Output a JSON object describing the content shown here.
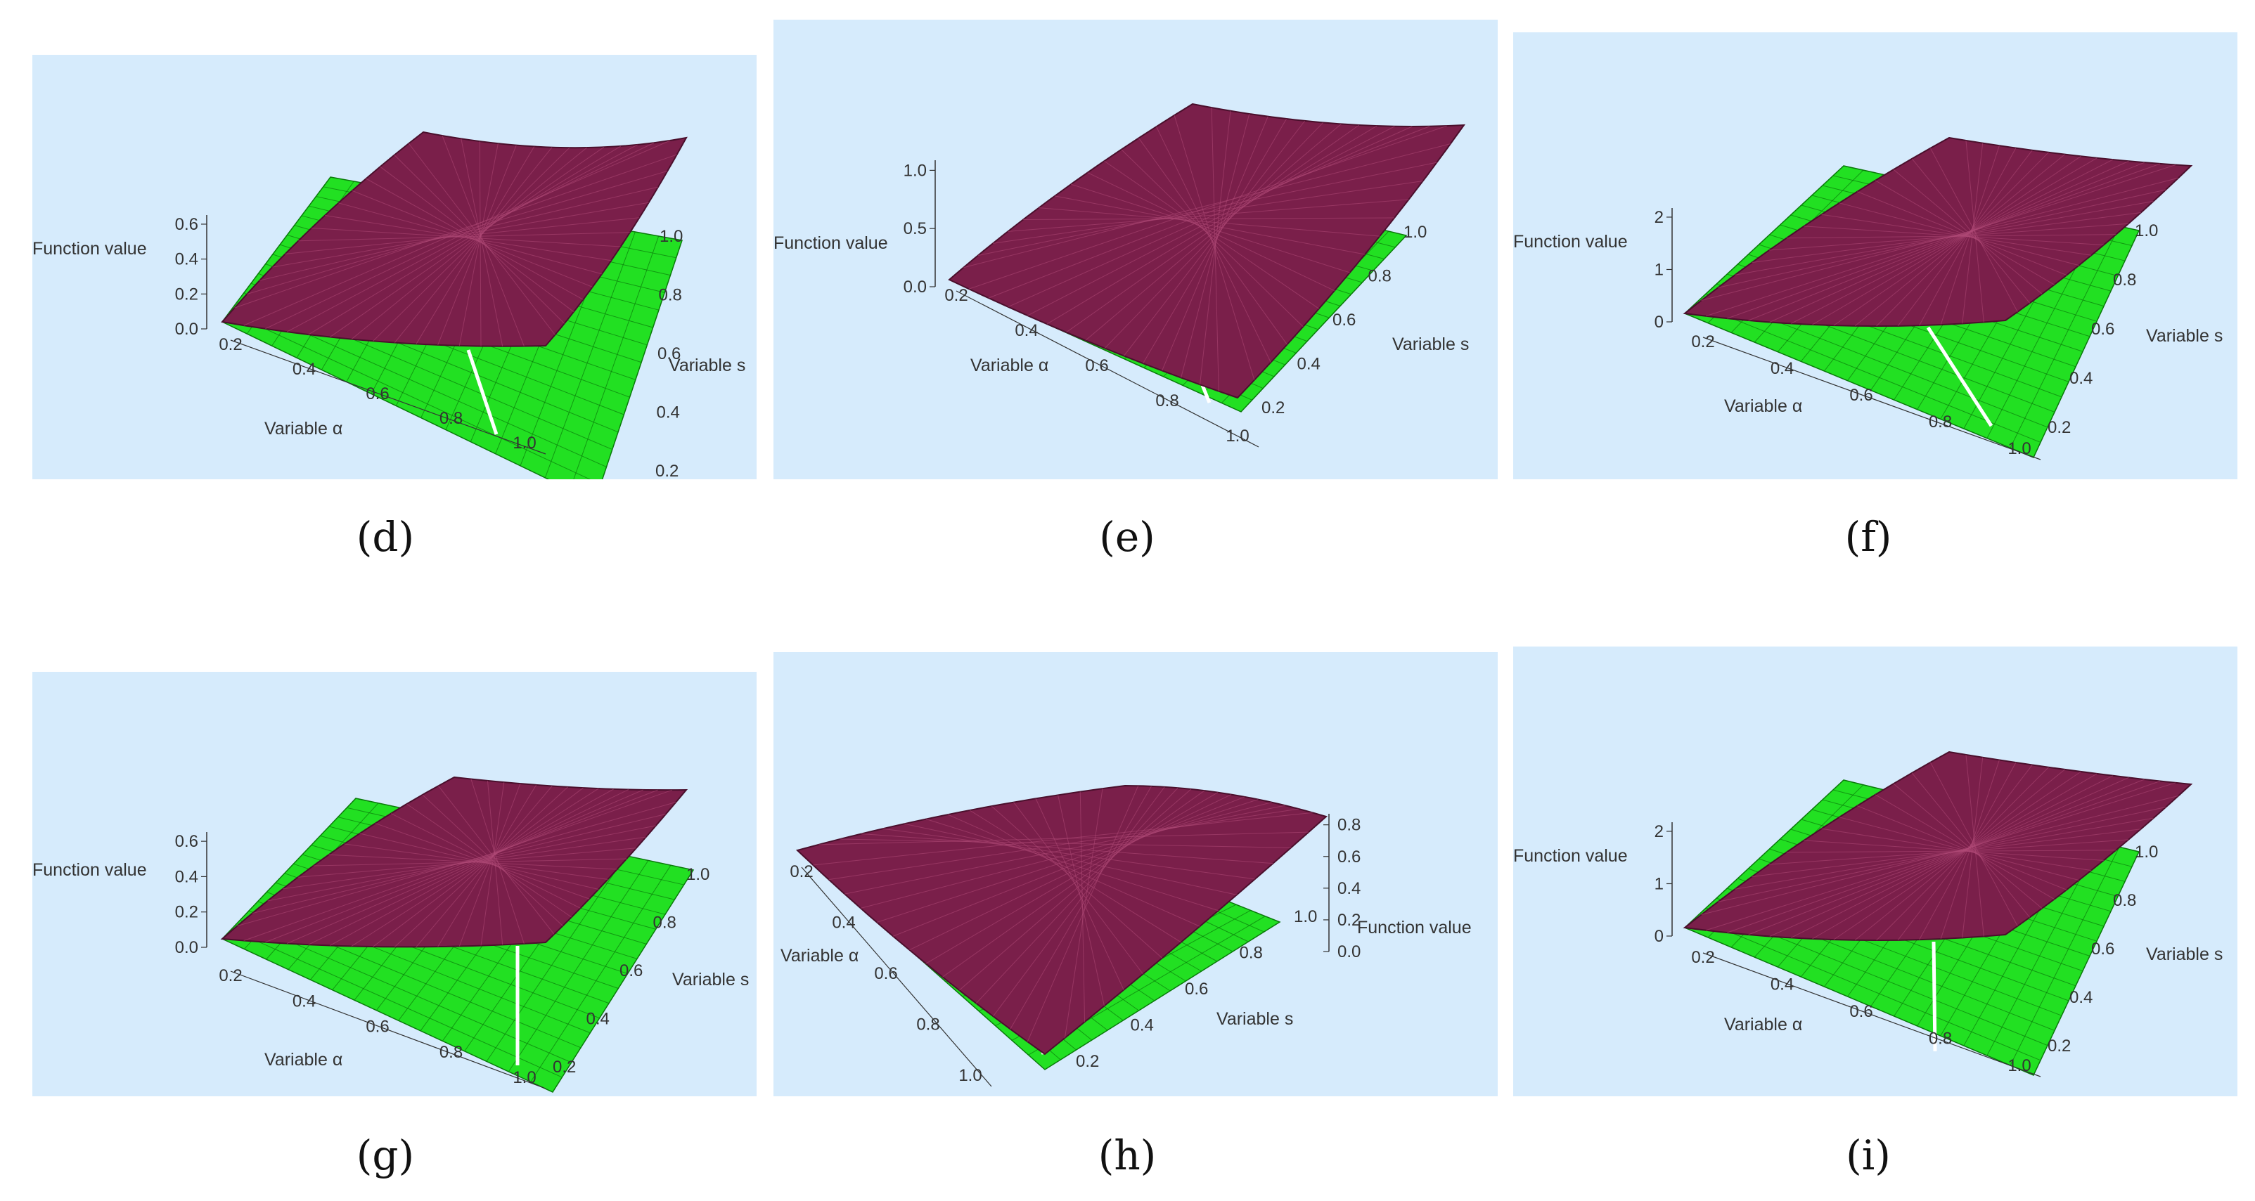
{
  "colors": {
    "background": "#d6ebfc",
    "upper_surface": "#7a1f4a",
    "upper_mesh": "#b04a77",
    "lower_surface": "#22e022",
    "lower_mesh": "#0a7a0a",
    "axis": "#333333",
    "white_line": "#ffffff"
  },
  "chart_data": [
    {
      "panel": "d",
      "type": "surface3d",
      "xlabel": "Variable α",
      "ylabel": "Variable s",
      "zlabel": "Function value",
      "x_ticks": [
        "0.2",
        "0.4",
        "0.6",
        "0.8",
        "1.0"
      ],
      "y_ticks": [
        "0.2",
        "0.4",
        "0.6",
        "0.8",
        "1.0"
      ],
      "z_ticks": [
        "0.0",
        "0.2",
        "0.4",
        "0.6"
      ],
      "xlim": [
        0,
        1
      ],
      "ylim": [
        0,
        1
      ],
      "zlim": [
        0,
        0.7
      ],
      "series": [
        {
          "surface": "upper"
        },
        {
          "surface": "lower"
        }
      ]
    },
    {
      "panel": "e",
      "type": "surface3d",
      "xlabel": "Variable α",
      "ylabel": "Variable s",
      "zlabel": "Function value",
      "x_ticks": [
        "0.2",
        "0.4",
        "0.6",
        "0.8",
        "1.0"
      ],
      "y_ticks": [
        "0.2",
        "0.4",
        "0.6",
        "0.8",
        "1.0"
      ],
      "z_ticks": [
        "0.0",
        "0.5",
        "1.0"
      ],
      "xlim": [
        0,
        1
      ],
      "ylim": [
        0,
        1
      ],
      "zlim": [
        0,
        1.3
      ],
      "series": [
        {
          "surface": "upper"
        },
        {
          "surface": "lower"
        }
      ]
    },
    {
      "panel": "f",
      "type": "surface3d",
      "xlabel": "Variable α",
      "ylabel": "Variable s",
      "zlabel": "Function value",
      "x_ticks": [
        "0.2",
        "0.4",
        "0.6",
        "0.8",
        "1.0"
      ],
      "y_ticks": [
        "0.2",
        "0.4",
        "0.6",
        "0.8",
        "1.0"
      ],
      "z_ticks": [
        "0",
        "1",
        "2"
      ],
      "xlim": [
        0,
        1
      ],
      "ylim": [
        0,
        1
      ],
      "zlim": [
        0,
        2.4
      ],
      "series": [
        {
          "surface": "upper"
        },
        {
          "surface": "lower"
        }
      ]
    },
    {
      "panel": "g",
      "type": "surface3d",
      "xlabel": "Variable α",
      "ylabel": "Variable s",
      "zlabel": "Function value",
      "x_ticks": [
        "0.2",
        "0.4",
        "0.6",
        "0.8",
        "1.0"
      ],
      "y_ticks": [
        "0.2",
        "0.4",
        "0.6",
        "0.8",
        "1.0"
      ],
      "z_ticks": [
        "0.0",
        "0.2",
        "0.4",
        "0.6"
      ],
      "xlim": [
        0,
        1
      ],
      "ylim": [
        0,
        1
      ],
      "zlim": [
        0,
        0.7
      ],
      "series": [
        {
          "surface": "upper"
        },
        {
          "surface": "lower"
        }
      ]
    },
    {
      "panel": "h",
      "type": "surface3d",
      "xlabel": "Variable α",
      "ylabel": "Variable s",
      "zlabel": "Function value",
      "x_ticks": [
        "0.2",
        "0.4",
        "0.6",
        "0.8",
        "1.0"
      ],
      "y_ticks": [
        "0.2",
        "0.4",
        "0.6",
        "0.8",
        "1.0"
      ],
      "z_ticks": [
        "0.0",
        "0.2",
        "0.4",
        "0.6",
        "0.8"
      ],
      "xlim": [
        0,
        1
      ],
      "ylim": [
        0,
        1
      ],
      "zlim": [
        0,
        0.9
      ],
      "series": [
        {
          "surface": "upper"
        },
        {
          "surface": "lower"
        }
      ]
    },
    {
      "panel": "i",
      "type": "surface3d",
      "xlabel": "Variable α",
      "ylabel": "Variable s",
      "zlabel": "Function value",
      "x_ticks": [
        "0.2",
        "0.4",
        "0.6",
        "0.8",
        "1.0"
      ],
      "y_ticks": [
        "0.2",
        "0.4",
        "0.6",
        "0.8",
        "1.0"
      ],
      "z_ticks": [
        "0",
        "1",
        "2"
      ],
      "xlim": [
        0,
        1
      ],
      "ylim": [
        0,
        1
      ],
      "zlim": [
        0,
        2.4
      ],
      "series": [
        {
          "surface": "upper"
        },
        {
          "surface": "lower"
        }
      ]
    }
  ],
  "captions": [
    "(d)",
    "(e)",
    "(f)",
    "(g)",
    "(h)",
    "(i)"
  ]
}
